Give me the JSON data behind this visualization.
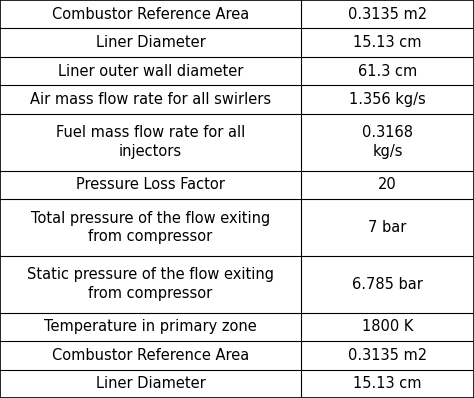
{
  "rows": [
    [
      "Combustor Reference Area",
      "0.3135 m2"
    ],
    [
      "Liner Diameter",
      "15.13 cm"
    ],
    [
      "Liner outer wall diameter",
      "61.3 cm"
    ],
    [
      "Air mass flow rate for all swirlers",
      "1.356 kg/s"
    ],
    [
      "Fuel mass flow rate for all\ninjectors",
      "0.3168\nkg/s"
    ],
    [
      "Pressure Loss Factor",
      "20"
    ],
    [
      "Total pressure of the flow exiting\nfrom compressor",
      "7 bar"
    ],
    [
      "Static pressure of the flow exiting\nfrom compressor",
      "6.785 bar"
    ],
    [
      "Temperature in primary zone",
      "1800 K"
    ],
    [
      "Combustor Reference Area",
      "0.3135 m2"
    ],
    [
      "Liner Diameter",
      "15.13 cm"
    ]
  ],
  "col_split": 0.635,
  "background_color": "#ffffff",
  "line_color": "#000000",
  "text_color": "#000000",
  "font_size": 10.5,
  "row_line_counts": [
    1,
    1,
    1,
    1,
    2,
    1,
    2,
    2,
    1,
    1,
    1
  ]
}
